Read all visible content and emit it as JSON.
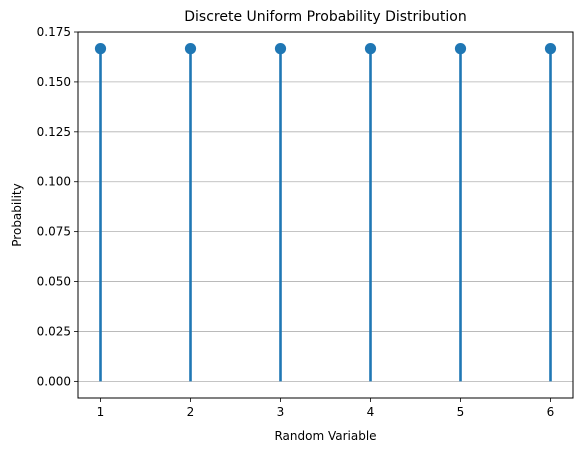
{
  "chart_data": {
    "type": "stem",
    "title": "Discrete Uniform Probability Distribution",
    "xlabel": "Random Variable",
    "ylabel": "Probability",
    "x": [
      1,
      2,
      3,
      4,
      5,
      6
    ],
    "y": [
      0.16667,
      0.16667,
      0.16667,
      0.16667,
      0.16667,
      0.16667
    ],
    "xlim": [
      0.75,
      6.25
    ],
    "ylim": [
      -0.00833,
      0.175
    ],
    "x_ticks": [
      "1",
      "2",
      "3",
      "4",
      "5",
      "6"
    ],
    "y_ticks": [
      "0.000",
      "0.025",
      "0.050",
      "0.075",
      "0.100",
      "0.125",
      "0.150",
      "0.175"
    ],
    "grid": "horizontal",
    "color": "#1f77b4"
  }
}
